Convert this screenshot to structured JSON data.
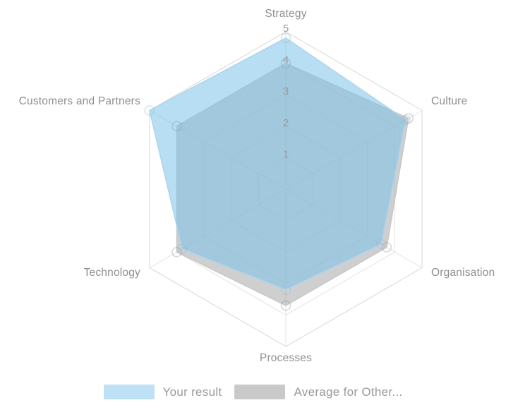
{
  "chart_data": {
    "type": "radar",
    "categories": [
      "Strategy",
      "Culture",
      "Organisation",
      "Processes",
      "Technology",
      "Customers and Partners"
    ],
    "series": [
      {
        "name": "Average for Other...",
        "values": [
          4.0,
          4.5,
          3.7,
          3.7,
          4.0,
          4.0
        ],
        "fill": "#a0a0a0",
        "fill_opacity": 0.5,
        "stroke": "#c6c6c6",
        "marker_stroke": "rgba(140,140,140,0.35)",
        "legend_swatch": "#c9c9c9"
      },
      {
        "name": "Your result",
        "values": [
          4.8,
          4.4,
          3.5,
          3.2,
          3.8,
          5.0
        ],
        "fill": "#7ec2ea",
        "fill_opacity": 0.55,
        "stroke": "#abd4ee",
        "marker_stroke": "rgba(150,190,215,0.45)",
        "legend_swatch": "#bee1f5"
      }
    ],
    "scale": {
      "min": 0,
      "max": 5,
      "ticks": [
        1,
        2,
        3,
        4,
        5
      ]
    },
    "grid_color": "#e3e3e3",
    "outer_grid_color": "#d7d7d7",
    "tick_label_color": "#999999",
    "axis_label_color": "#8f8f8f",
    "legend_position": "bottom"
  },
  "legend": {
    "items_order_note": "blue first, gray second",
    "blue_label": "Your result",
    "gray_label": "Average for Other..."
  }
}
